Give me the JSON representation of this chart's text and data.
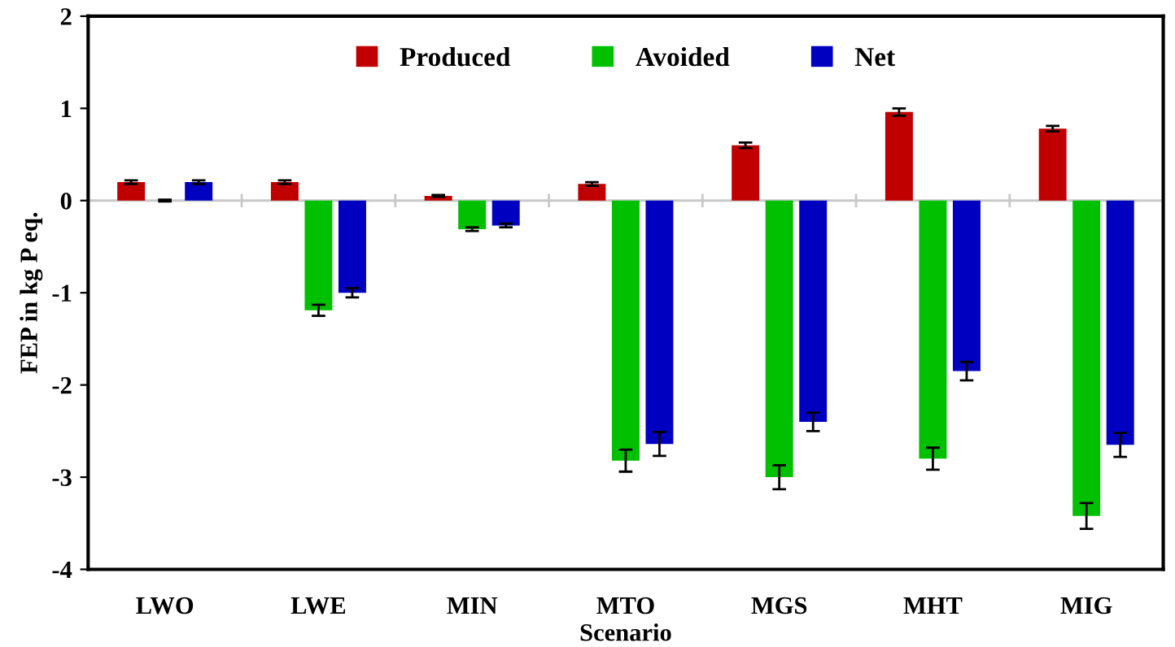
{
  "chart_data": {
    "type": "bar",
    "xlabel": "Scenario",
    "ylabel": "FEP in kg P eq.",
    "categories": [
      "LWO",
      "LWE",
      "MIN",
      "MTO",
      "MGS",
      "MHT",
      "MIG"
    ],
    "series": [
      {
        "name": "Produced",
        "color": "#c00000",
        "values": [
          0.2,
          0.2,
          0.05,
          0.18,
          0.6,
          0.96,
          0.78
        ],
        "errors": [
          0.02,
          0.02,
          0.01,
          0.02,
          0.03,
          0.04,
          0.03
        ]
      },
      {
        "name": "Avoided",
        "color": "#00c000",
        "values": [
          0,
          -1.19,
          -0.31,
          -2.82,
          -3.0,
          -2.8,
          -3.42
        ],
        "errors": [
          0.01,
          0.06,
          0.02,
          0.12,
          0.13,
          0.12,
          0.14
        ]
      },
      {
        "name": "Net",
        "color": "#0000c0",
        "values": [
          0.2,
          -1.0,
          -0.27,
          -2.64,
          -2.4,
          -1.85,
          -2.65
        ],
        "errors": [
          0.02,
          0.05,
          0.02,
          0.13,
          0.1,
          0.1,
          0.13
        ]
      }
    ],
    "ylim": [
      -4,
      2
    ],
    "yticks": [
      {
        "value": -4,
        "label": "-4"
      },
      {
        "value": -3,
        "label": "-3"
      },
      {
        "value": -2,
        "label": "-2"
      },
      {
        "value": -1,
        "label": "-1"
      },
      0,
      1,
      2
    ],
    "ref_lines": [
      {
        "axis": "y",
        "value": 0,
        "color": "#c8c8c8"
      }
    ],
    "legend": "top"
  }
}
